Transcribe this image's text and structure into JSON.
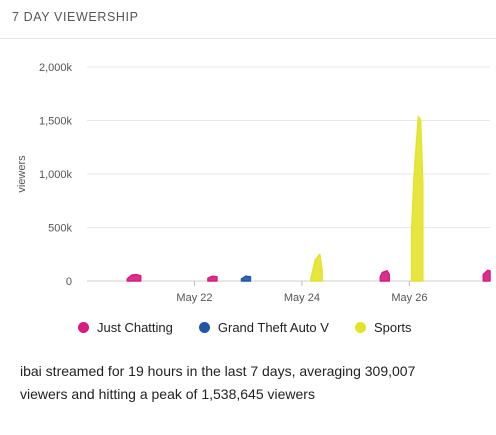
{
  "panel": {
    "title": "7 DAY VIEWERSHIP"
  },
  "chart_data": {
    "type": "area",
    "ylabel": "viewers",
    "ylim": [
      0,
      2000000
    ],
    "y_ticks": [
      0,
      500000,
      1000000,
      1500000,
      2000000
    ],
    "y_tick_labels": [
      "0",
      "500k",
      "1,000k",
      "1,500k",
      "2,000k"
    ],
    "x_ticks": [
      "May 22",
      "May 24",
      "May 26"
    ],
    "xlim_days": [
      "May 20 12:00",
      "May 28 00:00"
    ],
    "grid": true,
    "legend_placement": "bottom",
    "series": [
      {
        "name": "Just Chatting",
        "color": "#d61a7f",
        "segments": [
          [
            [
              "May 21 06:00",
              20000
            ],
            [
              "May 21 08:00",
              55000
            ],
            [
              "May 21 10:00",
              60000
            ],
            [
              "May 21 12:00",
              50000
            ]
          ],
          [
            [
              "May 22 18:00",
              25000
            ],
            [
              "May 22 20:00",
              45000
            ],
            [
              "May 22 22:00",
              40000
            ]
          ],
          [
            [
              "May 25 23:00",
              40000
            ],
            [
              "May 26 00:00",
              80000
            ],
            [
              "May 26 02:00",
              95000
            ],
            [
              "May 26 03:00",
              60000
            ]
          ],
          [
            [
              "May 27 21:00",
              60000
            ],
            [
              "May 27 23:00",
              100000
            ],
            [
              "May 28 00:00",
              95000
            ]
          ]
        ]
      },
      {
        "name": "Grand Theft Auto V",
        "color": "#2155a7",
        "segments": [
          [
            [
              "May 23 09:00",
              20000
            ],
            [
              "May 23 11:00",
              45000
            ],
            [
              "May 23 13:00",
              40000
            ]
          ]
        ]
      },
      {
        "name": "Sports",
        "color": "#e3e32a",
        "segments": [
          [
            [
              "May 24 16:00",
              20000
            ],
            [
              "May 24 18:00",
              200000
            ],
            [
              "May 24 20:00",
              250000
            ],
            [
              "May 24 21:00",
              100000
            ]
          ],
          [
            [
              "May 26 13:00",
              450000
            ],
            [
              "May 26 14:00",
              950000
            ],
            [
              "May 26 15:00",
              1250000
            ],
            [
              "May 26 16:00",
              1538645
            ],
            [
              "May 26 17:00",
              1500000
            ],
            [
              "May 26 18:00",
              900000
            ]
          ]
        ]
      }
    ]
  },
  "summary": {
    "text": "ibai streamed for 19 hours in the last 7 days, averaging 309,007 viewers and hitting a peak of 1,538,645 viewers"
  }
}
